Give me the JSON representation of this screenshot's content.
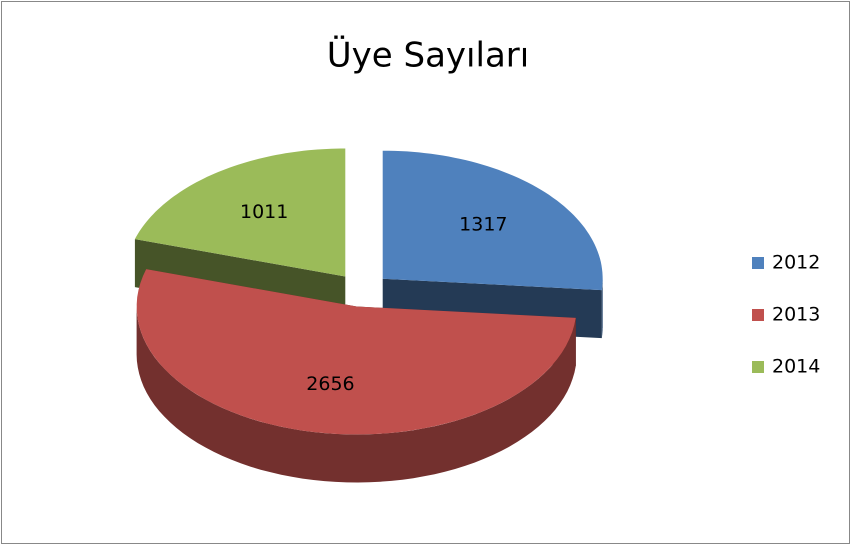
{
  "chart_data": {
    "type": "pie",
    "title": "Üye Sayıları",
    "categories": [
      "2012",
      "2013",
      "2014"
    ],
    "values": [
      1317,
      2656,
      1011
    ],
    "colors": [
      "#4f81bd",
      "#c0504d",
      "#9bbb59"
    ],
    "legend": "right",
    "exploded": true,
    "three_d": true
  }
}
